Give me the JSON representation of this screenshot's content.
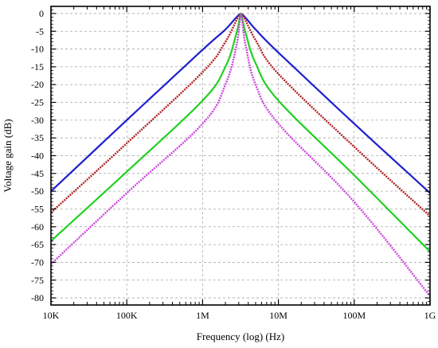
{
  "chart_data": {
    "type": "line",
    "title": "",
    "xlabel": "Frequency (log) (Hz)",
    "ylabel": "Voltage gain (dB)",
    "xscale": "log",
    "xlim": [
      10000,
      1000000000
    ],
    "ylim": [
      -82,
      2
    ],
    "x_ticks": [
      {
        "value": 10000,
        "label": "10K"
      },
      {
        "value": 100000,
        "label": "100K"
      },
      {
        "value": 1000000,
        "label": "1M"
      },
      {
        "value": 10000000,
        "label": "10M"
      },
      {
        "value": 100000000,
        "label": "100M"
      },
      {
        "value": 1000000000,
        "label": "1G"
      }
    ],
    "y_ticks": [
      {
        "value": 0,
        "label": "0"
      },
      {
        "value": -5,
        "label": "-5"
      },
      {
        "value": -10,
        "label": "-10"
      },
      {
        "value": -15,
        "label": "-15"
      },
      {
        "value": -20,
        "label": "-20"
      },
      {
        "value": -25,
        "label": "-25"
      },
      {
        "value": -30,
        "label": "-30"
      },
      {
        "value": -35,
        "label": "-35"
      },
      {
        "value": -40,
        "label": "-40"
      },
      {
        "value": -45,
        "label": "-45"
      },
      {
        "value": -50,
        "label": "-50"
      },
      {
        "value": -55,
        "label": "-55"
      },
      {
        "value": -60,
        "label": "-60"
      },
      {
        "value": -65,
        "label": "-65"
      },
      {
        "value": -70,
        "label": "-70"
      },
      {
        "value": -75,
        "label": "-75"
      },
      {
        "value": -80,
        "label": "-80"
      }
    ],
    "grid": true,
    "legend": "none",
    "series": [
      {
        "color": "#1f1fd0",
        "dash": "solid",
        "points": [
          {
            "x": 10000,
            "y": -50
          },
          {
            "x": 100000,
            "y": -30
          },
          {
            "x": 1000000,
            "y": -10.2
          },
          {
            "x": 2000000,
            "y": -4.5
          },
          {
            "x": 3200000,
            "y": 0
          },
          {
            "x": 5000000,
            "y": -4.5
          },
          {
            "x": 10000000,
            "y": -11
          },
          {
            "x": 100000000,
            "y": -31
          },
          {
            "x": 1000000000,
            "y": -50.5
          }
        ]
      },
      {
        "color": "#b02020",
        "dash": "dotted",
        "points": [
          {
            "x": 10000,
            "y": -56
          },
          {
            "x": 100000,
            "y": -36.5
          },
          {
            "x": 1000000,
            "y": -16.5
          },
          {
            "x": 2000000,
            "y": -8
          },
          {
            "x": 3200000,
            "y": 0
          },
          {
            "x": 5000000,
            "y": -7.5
          },
          {
            "x": 10000000,
            "y": -17
          },
          {
            "x": 100000000,
            "y": -37.5
          },
          {
            "x": 1000000000,
            "y": -57
          }
        ]
      },
      {
        "color": "#22d022",
        "dash": "solid",
        "points": [
          {
            "x": 10000,
            "y": -64
          },
          {
            "x": 100000,
            "y": -44.5
          },
          {
            "x": 1000000,
            "y": -24.5
          },
          {
            "x": 2000000,
            "y": -15
          },
          {
            "x": 2800000,
            "y": -5.5
          },
          {
            "x": 3200000,
            "y": 0
          },
          {
            "x": 3700000,
            "y": -5.5
          },
          {
            "x": 5000000,
            "y": -14
          },
          {
            "x": 10000000,
            "y": -24.5
          },
          {
            "x": 100000000,
            "y": -45.5
          },
          {
            "x": 1000000000,
            "y": -67
          }
        ]
      },
      {
        "color": "#cc44dd",
        "dash": "dotted",
        "points": [
          {
            "x": 10000,
            "y": -70.5
          },
          {
            "x": 100000,
            "y": -50.5
          },
          {
            "x": 1000000,
            "y": -31
          },
          {
            "x": 2000000,
            "y": -20
          },
          {
            "x": 2800000,
            "y": -9
          },
          {
            "x": 3200000,
            "y": 0
          },
          {
            "x": 3700000,
            "y": -9
          },
          {
            "x": 5000000,
            "y": -20
          },
          {
            "x": 10000000,
            "y": -31
          },
          {
            "x": 100000000,
            "y": -53
          },
          {
            "x": 1000000000,
            "y": -79.5
          }
        ]
      }
    ]
  }
}
